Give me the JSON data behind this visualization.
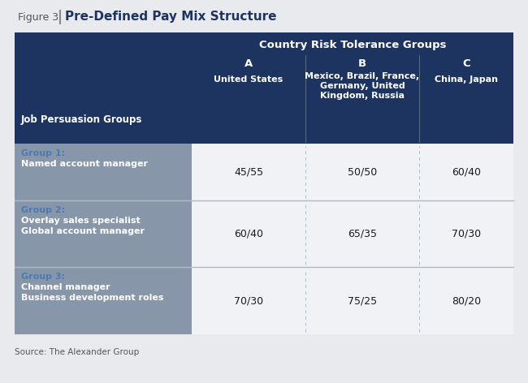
{
  "figure_label": "Figure 3",
  "title": "Pre-Defined Pay Mix Structure",
  "header_bg_color": "#1e3460",
  "header_text_color": "#ffffff",
  "row_bg_color": "#8896aa",
  "group_label_color": "#4a7ab5",
  "data_bg_color": "#f0f2f5",
  "data_text_color": "#1a1a1a",
  "outer_bg_color": "#e8eaed",
  "col_header_main": "Country Risk Tolerance Groups",
  "col_a_label": "A",
  "col_b_label": "B",
  "col_c_label": "C",
  "col_a_sub": "United States",
  "col_b_sub": "Mexico, Brazil, France,\nGermany, United\nKingdom, Russia",
  "col_c_sub": "China, Japan",
  "row_header_label": "Job Persuasion Groups",
  "groups": [
    {
      "label": "Group 1:",
      "desc_lines": [
        "Named account manager"
      ],
      "values": [
        "45/55",
        "50/50",
        "60/40"
      ]
    },
    {
      "label": "Group 2:",
      "desc_lines": [
        "Overlay sales specialist",
        "Global account manager"
      ],
      "values": [
        "60/40",
        "65/35",
        "70/30"
      ]
    },
    {
      "label": "Group 3:",
      "desc_lines": [
        "Channel manager",
        "Business development roles"
      ],
      "values": [
        "70/30",
        "75/25",
        "80/20"
      ]
    }
  ],
  "source_text": "Source: The Alexander Group",
  "divider_color": "#b0bac8",
  "title_color": "#1e3460",
  "fig_label_color": "#555555",
  "col_divider_color": "#5a6e88"
}
